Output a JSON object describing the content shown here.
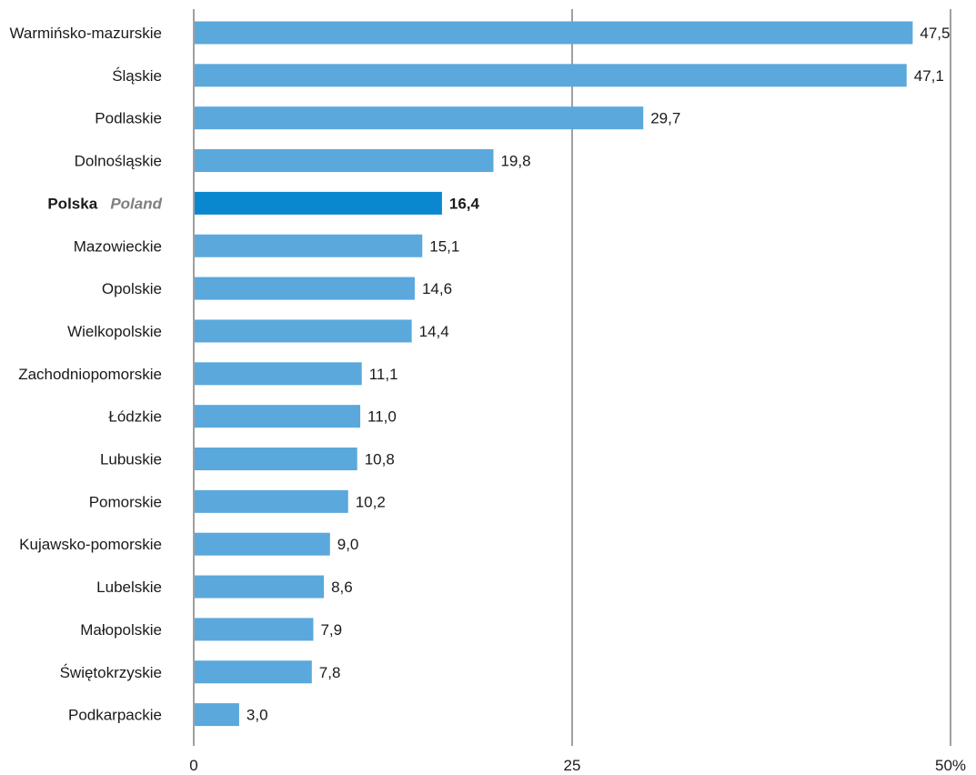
{
  "chart_data": {
    "type": "bar",
    "orientation": "horizontal",
    "categories": [
      "Warmińsko-mazurskie",
      "Śląskie",
      "Podlaskie",
      "Dolnośląskie",
      "Polska",
      "Mazowieckie",
      "Opolskie",
      "Wielkopolskie",
      "Zachodniopomorskie",
      "Łódzkie",
      "Lubuskie",
      "Pomorskie",
      "Kujawsko-pomorskie",
      "Lubelskie",
      "Małopolskie",
      "Świętokrzyskie",
      "Podkarpackie"
    ],
    "values": [
      47.5,
      47.1,
      29.7,
      19.8,
      16.4,
      15.1,
      14.6,
      14.4,
      11.1,
      11.0,
      10.8,
      10.2,
      9.0,
      8.6,
      7.9,
      7.8,
      3.0
    ],
    "value_labels": [
      "47,5",
      "47,1",
      "29,7",
      "19,8",
      "16,4",
      "15,1",
      "14,6",
      "14,4",
      "11,1",
      "11,0",
      "10,8",
      "10,2",
      "9,0",
      "8,6",
      "7,9",
      "7,8",
      "3,0"
    ],
    "highlight": {
      "category": "Polska",
      "subtitle": "Poland",
      "color": "#0a87cf"
    },
    "bar_color": "#5aa8dc",
    "axis_ticks": [
      {
        "value": 0,
        "label": "0"
      },
      {
        "value": 25,
        "label": "25"
      },
      {
        "value": 50,
        "label": "50%"
      }
    ],
    "xlim": [
      0,
      50
    ],
    "grid": true,
    "title": "",
    "xlabel": "",
    "ylabel": ""
  }
}
